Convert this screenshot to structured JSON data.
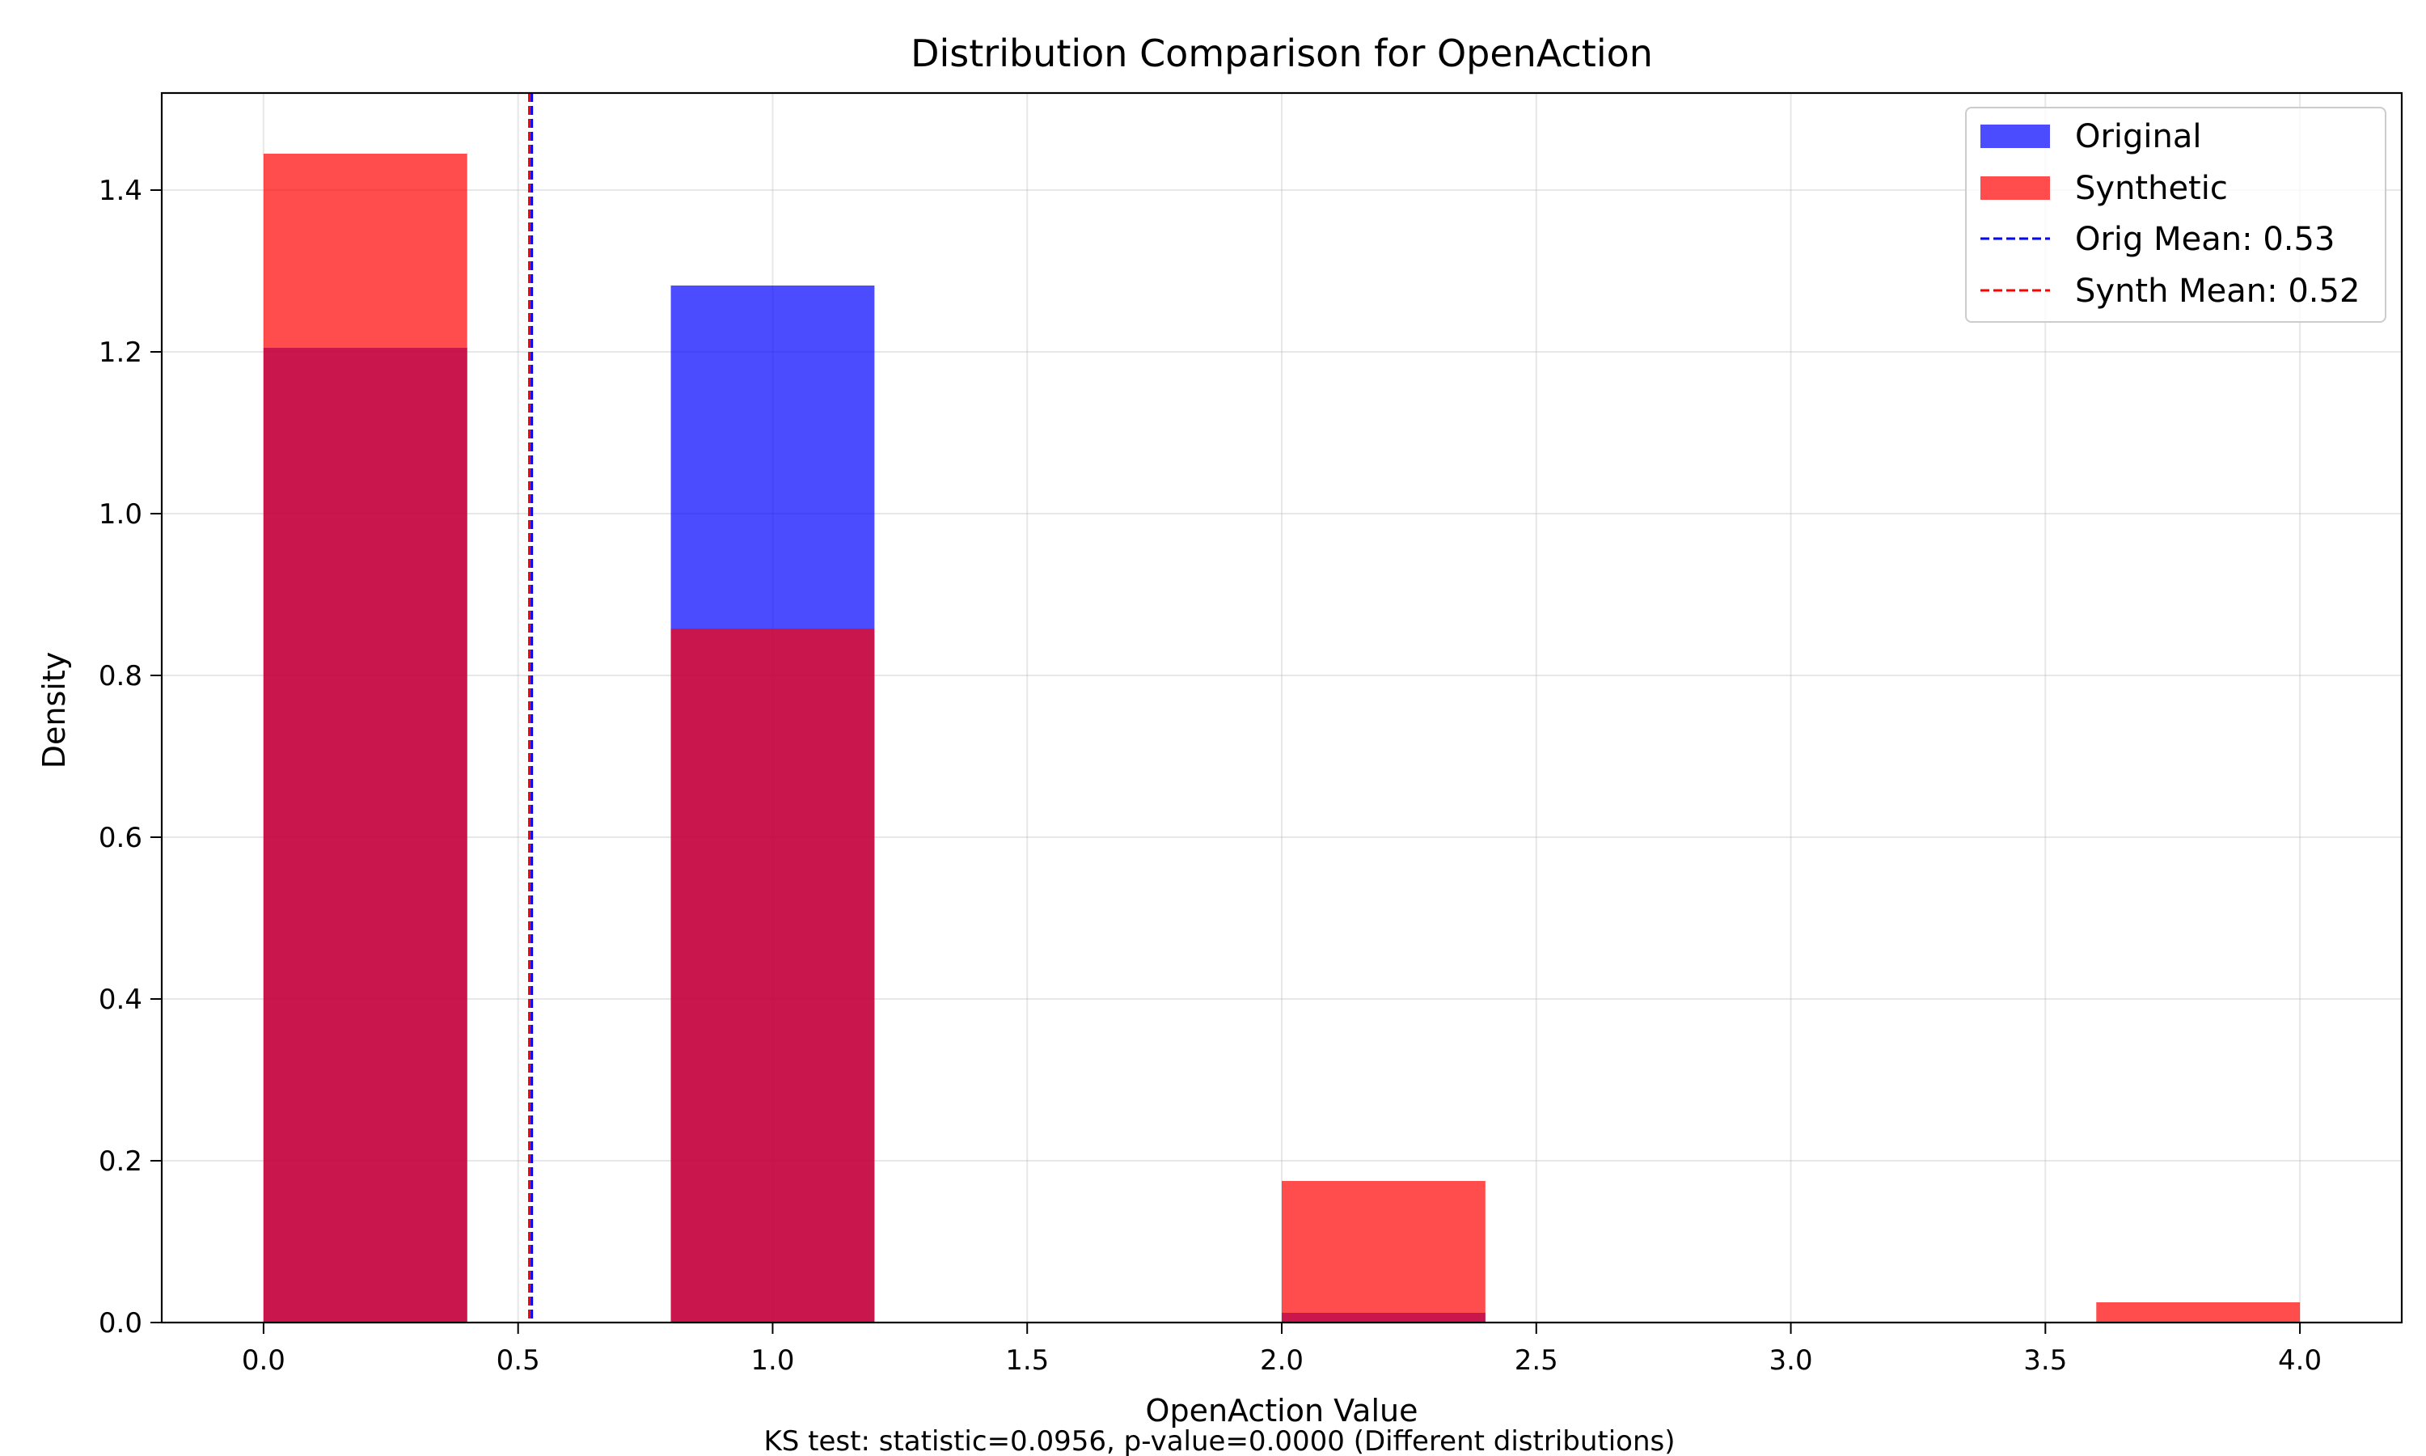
{
  "chart_data": {
    "type": "bar",
    "title": "Distribution Comparison for OpenAction",
    "xlabel": "OpenAction Value",
    "ylabel": "Density",
    "footnote": "KS test: statistic=0.0956, p-value=0.0000 (Different distributions)",
    "xlim": [
      -0.2,
      4.2
    ],
    "ylim": [
      0,
      1.52
    ],
    "xticks": [
      "0.0",
      "0.5",
      "1.0",
      "1.5",
      "2.0",
      "2.5",
      "3.0",
      "3.5",
      "4.0"
    ],
    "yticks": [
      "0.0",
      "0.2",
      "0.4",
      "0.6",
      "0.8",
      "1.0",
      "1.2",
      "1.4"
    ],
    "grid": true,
    "legend_position": "top-right",
    "series": [
      {
        "name": "Original",
        "color": "#0000ff",
        "bins": [
          {
            "x0": 0.0,
            "x1": 0.4,
            "value": 1.205
          },
          {
            "x0": 0.8,
            "x1": 1.2,
            "value": 1.282
          },
          {
            "x0": 2.0,
            "x1": 2.4,
            "value": 0.012
          }
        ]
      },
      {
        "name": "Synthetic",
        "color": "#ff0000",
        "bins": [
          {
            "x0": 0.0,
            "x1": 0.4,
            "value": 1.445
          },
          {
            "x0": 0.8,
            "x1": 1.2,
            "value": 0.858
          },
          {
            "x0": 2.0,
            "x1": 2.4,
            "value": 0.175
          },
          {
            "x0": 3.6,
            "x1": 4.0,
            "value": 0.025
          }
        ]
      }
    ],
    "mean_lines": [
      {
        "name": "Orig Mean: 0.53",
        "value": 0.527,
        "color": "#0000ff"
      },
      {
        "name": "Synth Mean: 0.52",
        "value": 0.522,
        "color": "#ff0000"
      }
    ]
  }
}
